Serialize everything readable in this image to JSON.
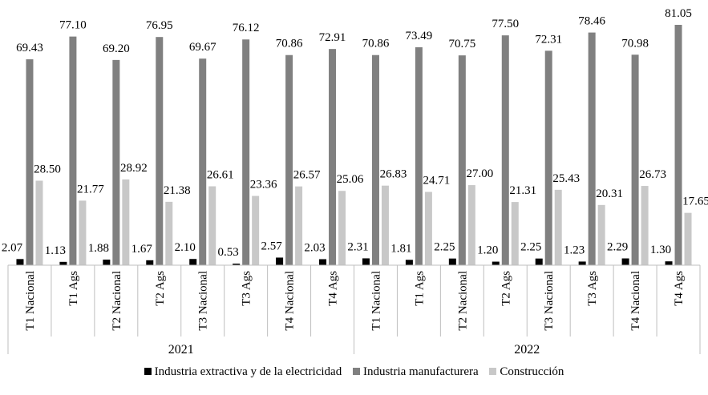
{
  "chart_data": {
    "type": "bar",
    "title": "",
    "xlabel": "",
    "ylabel": "",
    "ylim": [
      0,
      81.05
    ],
    "grid": false,
    "legend_position": "bottom",
    "groups": [
      "2021",
      "2022"
    ],
    "categories": [
      "T1 Nacional",
      "T1 Ags",
      "T2 Nacional",
      "T2 Ags",
      "T3 Nacional",
      "T3 Ags",
      "T4 Nacional",
      "T4 Ags",
      "T1 Nacional",
      "T1 Ags",
      "T2 Nacional",
      "T2 Ags",
      "T3 Nacional",
      "T3 Ags",
      "T4 Nacional",
      "T4 Ags"
    ],
    "series": [
      {
        "name": "Industria extractiva y de la electricidad",
        "color": "#000000",
        "values": [
          2.07,
          1.13,
          1.88,
          1.67,
          2.1,
          0.53,
          2.57,
          2.03,
          2.31,
          1.81,
          2.25,
          1.2,
          2.25,
          1.23,
          2.29,
          1.3
        ]
      },
      {
        "name": "Industria manufacturera",
        "color": "#808080",
        "values": [
          69.43,
          77.1,
          69.2,
          76.95,
          69.67,
          76.12,
          70.86,
          72.91,
          70.86,
          73.49,
          70.75,
          77.5,
          72.31,
          78.46,
          70.98,
          81.05
        ]
      },
      {
        "name": "Construcción",
        "color": "#c8c8c8",
        "values": [
          28.5,
          21.77,
          28.92,
          21.38,
          26.61,
          23.36,
          26.57,
          25.06,
          26.83,
          24.71,
          27.0,
          21.31,
          25.43,
          20.31,
          26.73,
          17.65
        ]
      }
    ]
  }
}
